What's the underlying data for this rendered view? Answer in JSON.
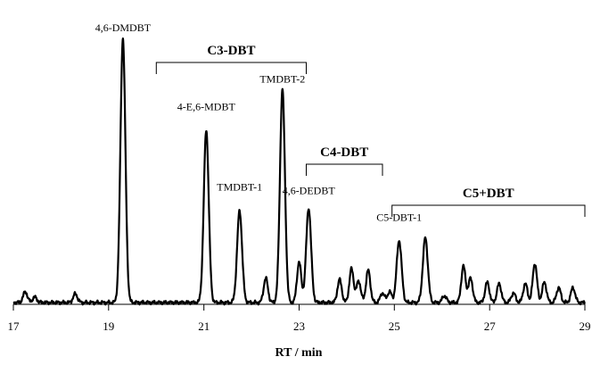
{
  "chart_data": {
    "type": "line",
    "xlabel": "RT / min",
    "ylabel": "",
    "xlim": [
      17,
      29
    ],
    "ylim": [
      0,
      100
    ],
    "x_ticks": [
      "17",
      "19",
      "21",
      "23",
      "25",
      "27",
      "29"
    ],
    "line_color": "#000000",
    "grid": false,
    "peaks": [
      {
        "x": 17.25,
        "y": 4.0
      },
      {
        "x": 17.45,
        "y": 2.0
      },
      {
        "x": 18.3,
        "y": 3.2
      },
      {
        "x": 19.3,
        "y": 98.0,
        "label": "4,6-DMDBT"
      },
      {
        "x": 21.05,
        "y": 64.0,
        "label": "4-E,6-MDBT"
      },
      {
        "x": 21.75,
        "y": 34.0,
        "label": "TMDBT-1"
      },
      {
        "x": 22.3,
        "y": 9.0
      },
      {
        "x": 22.65,
        "y": 79.0,
        "label": "TMDBT-2"
      },
      {
        "x": 23.0,
        "y": 15.0
      },
      {
        "x": 23.2,
        "y": 35.0,
        "label": "4,6-DEDBT"
      },
      {
        "x": 23.85,
        "y": 8.5
      },
      {
        "x": 24.1,
        "y": 12.5
      },
      {
        "x": 24.25,
        "y": 8.0
      },
      {
        "x": 24.45,
        "y": 12.0
      },
      {
        "x": 24.75,
        "y": 3.5
      },
      {
        "x": 24.9,
        "y": 4.0
      },
      {
        "x": 25.1,
        "y": 23.0,
        "label": "C5-DBT-1"
      },
      {
        "x": 25.65,
        "y": 24.0
      },
      {
        "x": 26.05,
        "y": 2.5
      },
      {
        "x": 26.45,
        "y": 13.5
      },
      {
        "x": 26.6,
        "y": 9.0
      },
      {
        "x": 26.95,
        "y": 7.5
      },
      {
        "x": 27.2,
        "y": 7.0
      },
      {
        "x": 27.5,
        "y": 3.5
      },
      {
        "x": 27.75,
        "y": 7.0
      },
      {
        "x": 27.95,
        "y": 14.5
      },
      {
        "x": 28.15,
        "y": 7.5
      },
      {
        "x": 28.45,
        "y": 5.5
      },
      {
        "x": 28.75,
        "y": 5.5
      }
    ],
    "groups": [
      {
        "label": "C3-DBT",
        "x_start": 20.0,
        "x_end": 23.15
      },
      {
        "label": "C4-DBT",
        "x_start": 23.15,
        "x_end": 24.75
      },
      {
        "label": "C5+DBT",
        "x_start": 24.95,
        "x_end": 29.0
      }
    ]
  }
}
